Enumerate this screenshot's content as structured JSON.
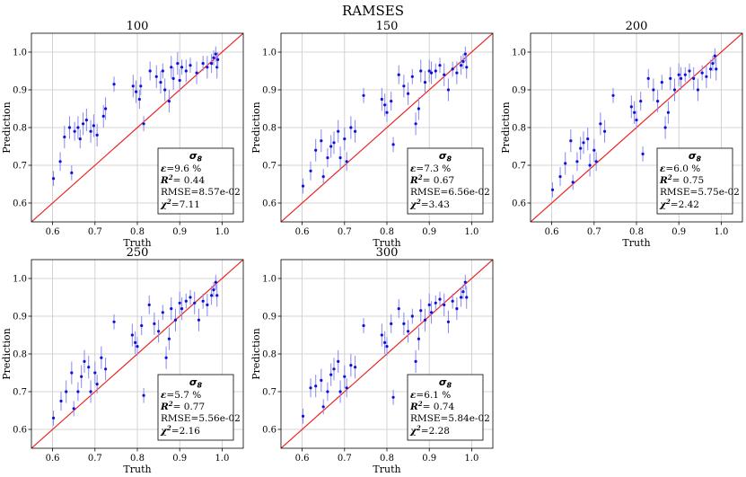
{
  "figure_title": "RAMSES",
  "colors": {
    "points": "#1010dd",
    "errorbars": "#8888f0",
    "identity": "#ee2222",
    "grid": "#c8c8c8"
  },
  "chart_data": [
    {
      "type": "scatter",
      "title": "100",
      "xlabel": "Truth",
      "ylabel": "Prediction",
      "xlim": [
        0.55,
        1.05
      ],
      "ylim": [
        0.55,
        1.05
      ],
      "xticks": [
        0.6,
        0.7,
        0.8,
        0.9,
        1.0
      ],
      "yticks": [
        0.6,
        0.7,
        0.8,
        0.9,
        1.0
      ],
      "grid": true,
      "identity_line": true,
      "stats": {
        "param": "σ8",
        "eps": "=9.6 %",
        "r2": "0.44",
        "rmse": "RMSE=8.57e-02",
        "chi2": "=7.11"
      },
      "points": [
        [
          0.602,
          0.665,
          0.02
        ],
        [
          0.618,
          0.71,
          0.025
        ],
        [
          0.628,
          0.775,
          0.03
        ],
        [
          0.64,
          0.8,
          0.03
        ],
        [
          0.645,
          0.68,
          0.02
        ],
        [
          0.652,
          0.79,
          0.025
        ],
        [
          0.66,
          0.8,
          0.03
        ],
        [
          0.665,
          0.77,
          0.025
        ],
        [
          0.672,
          0.81,
          0.03
        ],
        [
          0.68,
          0.82,
          0.03
        ],
        [
          0.69,
          0.79,
          0.03
        ],
        [
          0.697,
          0.805,
          0.03
        ],
        [
          0.705,
          0.78,
          0.03
        ],
        [
          0.72,
          0.83,
          0.03
        ],
        [
          0.725,
          0.85,
          0.03
        ],
        [
          0.745,
          0.915,
          0.02
        ],
        [
          0.79,
          0.91,
          0.03
        ],
        [
          0.797,
          0.895,
          0.03
        ],
        [
          0.805,
          0.875,
          0.025
        ],
        [
          0.808,
          0.91,
          0.025
        ],
        [
          0.815,
          0.81,
          0.02
        ],
        [
          0.83,
          0.95,
          0.025
        ],
        [
          0.845,
          0.935,
          0.03
        ],
        [
          0.855,
          0.92,
          0.03
        ],
        [
          0.86,
          0.95,
          0.02
        ],
        [
          0.865,
          0.9,
          0.03
        ],
        [
          0.875,
          0.87,
          0.03
        ],
        [
          0.88,
          0.96,
          0.03
        ],
        [
          0.885,
          0.93,
          0.03
        ],
        [
          0.895,
          0.97,
          0.03
        ],
        [
          0.9,
          0.925,
          0.03
        ],
        [
          0.905,
          0.96,
          0.02
        ],
        [
          0.915,
          0.95,
          0.03
        ],
        [
          0.925,
          0.965,
          0.02
        ],
        [
          0.94,
          0.945,
          0.03
        ],
        [
          0.955,
          0.97,
          0.02
        ],
        [
          0.965,
          0.96,
          0.03
        ],
        [
          0.975,
          0.97,
          0.025
        ],
        [
          0.98,
          0.985,
          0.02
        ],
        [
          0.985,
          0.995,
          0.02
        ],
        [
          0.988,
          0.96,
          0.03
        ],
        [
          0.99,
          0.98,
          0.02
        ]
      ]
    },
    {
      "type": "scatter",
      "title": "150",
      "xlabel": "Truth",
      "ylabel": "Prediction",
      "xlim": [
        0.55,
        1.05
      ],
      "ylim": [
        0.55,
        1.05
      ],
      "xticks": [
        0.6,
        0.7,
        0.8,
        0.9,
        1.0
      ],
      "yticks": [
        0.6,
        0.7,
        0.8,
        0.9,
        1.0
      ],
      "grid": true,
      "identity_line": true,
      "stats": {
        "param": "σ8",
        "eps": "=7.3 %",
        "r2": "0.67",
        "rmse": "RMSE=6.56e-02",
        "chi2": "=3.43"
      },
      "points": [
        [
          0.602,
          0.645,
          0.02
        ],
        [
          0.62,
          0.685,
          0.025
        ],
        [
          0.632,
          0.74,
          0.03
        ],
        [
          0.645,
          0.765,
          0.03
        ],
        [
          0.65,
          0.67,
          0.02
        ],
        [
          0.66,
          0.72,
          0.025
        ],
        [
          0.668,
          0.75,
          0.03
        ],
        [
          0.675,
          0.76,
          0.03
        ],
        [
          0.685,
          0.79,
          0.03
        ],
        [
          0.69,
          0.72,
          0.03
        ],
        [
          0.7,
          0.77,
          0.03
        ],
        [
          0.705,
          0.71,
          0.025
        ],
        [
          0.715,
          0.8,
          0.03
        ],
        [
          0.725,
          0.79,
          0.03
        ],
        [
          0.745,
          0.885,
          0.02
        ],
        [
          0.788,
          0.875,
          0.03
        ],
        [
          0.795,
          0.86,
          0.03
        ],
        [
          0.8,
          0.84,
          0.025
        ],
        [
          0.81,
          0.87,
          0.025
        ],
        [
          0.815,
          0.755,
          0.02
        ],
        [
          0.828,
          0.94,
          0.025
        ],
        [
          0.84,
          0.91,
          0.03
        ],
        [
          0.85,
          0.89,
          0.03
        ],
        [
          0.86,
          0.935,
          0.02
        ],
        [
          0.868,
          0.81,
          0.03
        ],
        [
          0.875,
          0.85,
          0.03
        ],
        [
          0.88,
          0.95,
          0.03
        ],
        [
          0.89,
          0.92,
          0.03
        ],
        [
          0.9,
          0.95,
          0.03
        ],
        [
          0.905,
          0.945,
          0.03
        ],
        [
          0.915,
          0.95,
          0.02
        ],
        [
          0.925,
          0.965,
          0.02
        ],
        [
          0.935,
          0.94,
          0.03
        ],
        [
          0.945,
          0.9,
          0.03
        ],
        [
          0.955,
          0.955,
          0.02
        ],
        [
          0.965,
          0.945,
          0.03
        ],
        [
          0.975,
          0.965,
          0.025
        ],
        [
          0.98,
          0.975,
          0.02
        ],
        [
          0.985,
          0.995,
          0.02
        ],
        [
          0.988,
          0.96,
          0.03
        ]
      ]
    },
    {
      "type": "scatter",
      "title": "200",
      "xlabel": "Truth",
      "ylabel": "Prediction",
      "xlim": [
        0.55,
        1.05
      ],
      "ylim": [
        0.55,
        1.05
      ],
      "xticks": [
        0.6,
        0.7,
        0.8,
        0.9,
        1.0
      ],
      "yticks": [
        0.6,
        0.7,
        0.8,
        0.9,
        1.0
      ],
      "grid": true,
      "identity_line": true,
      "stats": {
        "param": "σ8",
        "eps": "=6.0 %",
        "r2": "0.75",
        "rmse": "RMSE=5.75e-02",
        "chi2": "=2.42"
      },
      "points": [
        [
          0.602,
          0.635,
          0.02
        ],
        [
          0.62,
          0.67,
          0.025
        ],
        [
          0.632,
          0.705,
          0.03
        ],
        [
          0.645,
          0.765,
          0.03
        ],
        [
          0.65,
          0.655,
          0.02
        ],
        [
          0.66,
          0.71,
          0.025
        ],
        [
          0.668,
          0.745,
          0.03
        ],
        [
          0.675,
          0.76,
          0.03
        ],
        [
          0.685,
          0.77,
          0.03
        ],
        [
          0.69,
          0.7,
          0.03
        ],
        [
          0.7,
          0.74,
          0.03
        ],
        [
          0.705,
          0.71,
          0.025
        ],
        [
          0.715,
          0.81,
          0.03
        ],
        [
          0.725,
          0.79,
          0.03
        ],
        [
          0.745,
          0.885,
          0.02
        ],
        [
          0.788,
          0.855,
          0.03
        ],
        [
          0.795,
          0.84,
          0.03
        ],
        [
          0.8,
          0.82,
          0.025
        ],
        [
          0.81,
          0.87,
          0.025
        ],
        [
          0.815,
          0.73,
          0.02
        ],
        [
          0.828,
          0.93,
          0.025
        ],
        [
          0.84,
          0.9,
          0.03
        ],
        [
          0.85,
          0.87,
          0.03
        ],
        [
          0.86,
          0.92,
          0.02
        ],
        [
          0.868,
          0.8,
          0.03
        ],
        [
          0.875,
          0.84,
          0.03
        ],
        [
          0.88,
          0.93,
          0.03
        ],
        [
          0.89,
          0.9,
          0.03
        ],
        [
          0.9,
          0.94,
          0.03
        ],
        [
          0.905,
          0.93,
          0.03
        ],
        [
          0.915,
          0.94,
          0.02
        ],
        [
          0.925,
          0.95,
          0.02
        ],
        [
          0.935,
          0.93,
          0.03
        ],
        [
          0.945,
          0.9,
          0.03
        ],
        [
          0.955,
          0.945,
          0.02
        ],
        [
          0.965,
          0.935,
          0.03
        ],
        [
          0.975,
          0.955,
          0.025
        ],
        [
          0.98,
          0.97,
          0.02
        ],
        [
          0.985,
          0.99,
          0.02
        ],
        [
          0.988,
          0.955,
          0.03
        ]
      ]
    },
    {
      "type": "scatter",
      "title": "250",
      "xlabel": "Truth",
      "ylabel": "Prediction",
      "xlim": [
        0.55,
        1.05
      ],
      "ylim": [
        0.55,
        1.05
      ],
      "xticks": [
        0.6,
        0.7,
        0.8,
        0.9,
        1.0
      ],
      "yticks": [
        0.6,
        0.7,
        0.8,
        0.9,
        1.0
      ],
      "grid": true,
      "identity_line": true,
      "stats": {
        "param": "σ8",
        "eps": "=5.7 %",
        "r2": "0.77",
        "rmse": "RMSE=5.56e-02",
        "chi2": "=2.16"
      },
      "points": [
        [
          0.602,
          0.63,
          0.02
        ],
        [
          0.62,
          0.675,
          0.025
        ],
        [
          0.632,
          0.7,
          0.03
        ],
        [
          0.645,
          0.75,
          0.03
        ],
        [
          0.65,
          0.655,
          0.02
        ],
        [
          0.66,
          0.7,
          0.025
        ],
        [
          0.668,
          0.74,
          0.03
        ],
        [
          0.675,
          0.78,
          0.03
        ],
        [
          0.685,
          0.765,
          0.03
        ],
        [
          0.69,
          0.7,
          0.03
        ],
        [
          0.7,
          0.75,
          0.03
        ],
        [
          0.705,
          0.72,
          0.025
        ],
        [
          0.715,
          0.79,
          0.03
        ],
        [
          0.725,
          0.76,
          0.03
        ],
        [
          0.745,
          0.885,
          0.02
        ],
        [
          0.788,
          0.85,
          0.03
        ],
        [
          0.795,
          0.83,
          0.03
        ],
        [
          0.8,
          0.82,
          0.025
        ],
        [
          0.81,
          0.875,
          0.025
        ],
        [
          0.815,
          0.69,
          0.02
        ],
        [
          0.828,
          0.93,
          0.025
        ],
        [
          0.84,
          0.88,
          0.03
        ],
        [
          0.85,
          0.86,
          0.03
        ],
        [
          0.86,
          0.91,
          0.02
        ],
        [
          0.868,
          0.79,
          0.03
        ],
        [
          0.875,
          0.84,
          0.03
        ],
        [
          0.88,
          0.92,
          0.03
        ],
        [
          0.89,
          0.89,
          0.03
        ],
        [
          0.9,
          0.935,
          0.03
        ],
        [
          0.905,
          0.92,
          0.03
        ],
        [
          0.915,
          0.94,
          0.02
        ],
        [
          0.925,
          0.95,
          0.02
        ],
        [
          0.935,
          0.935,
          0.03
        ],
        [
          0.945,
          0.89,
          0.03
        ],
        [
          0.955,
          0.94,
          0.02
        ],
        [
          0.965,
          0.93,
          0.03
        ],
        [
          0.975,
          0.955,
          0.025
        ],
        [
          0.98,
          0.97,
          0.02
        ],
        [
          0.985,
          0.99,
          0.02
        ],
        [
          0.988,
          0.955,
          0.03
        ]
      ]
    },
    {
      "type": "scatter",
      "title": "300",
      "xlabel": "Truth",
      "ylabel": "Prediction",
      "xlim": [
        0.55,
        1.05
      ],
      "ylim": [
        0.55,
        1.05
      ],
      "xticks": [
        0.6,
        0.7,
        0.8,
        0.9,
        1.0
      ],
      "yticks": [
        0.6,
        0.7,
        0.8,
        0.9,
        1.0
      ],
      "grid": true,
      "identity_line": true,
      "stats": {
        "param": "σ8",
        "eps": "=6.1 %",
        "r2": "0.74",
        "rmse": "RMSE=5.84e-02",
        "chi2": "=2.28"
      },
      "points": [
        [
          0.602,
          0.635,
          0.02
        ],
        [
          0.62,
          0.71,
          0.025
        ],
        [
          0.632,
          0.715,
          0.03
        ],
        [
          0.645,
          0.73,
          0.03
        ],
        [
          0.65,
          0.66,
          0.02
        ],
        [
          0.66,
          0.7,
          0.025
        ],
        [
          0.668,
          0.745,
          0.03
        ],
        [
          0.675,
          0.76,
          0.03
        ],
        [
          0.685,
          0.78,
          0.03
        ],
        [
          0.69,
          0.7,
          0.03
        ],
        [
          0.7,
          0.74,
          0.03
        ],
        [
          0.705,
          0.71,
          0.025
        ],
        [
          0.715,
          0.77,
          0.03
        ],
        [
          0.725,
          0.765,
          0.03
        ],
        [
          0.745,
          0.875,
          0.02
        ],
        [
          0.788,
          0.85,
          0.03
        ],
        [
          0.795,
          0.83,
          0.03
        ],
        [
          0.8,
          0.82,
          0.025
        ],
        [
          0.81,
          0.88,
          0.025
        ],
        [
          0.815,
          0.685,
          0.02
        ],
        [
          0.828,
          0.92,
          0.025
        ],
        [
          0.84,
          0.88,
          0.03
        ],
        [
          0.85,
          0.86,
          0.03
        ],
        [
          0.86,
          0.9,
          0.02
        ],
        [
          0.868,
          0.78,
          0.03
        ],
        [
          0.875,
          0.84,
          0.03
        ],
        [
          0.88,
          0.915,
          0.03
        ],
        [
          0.89,
          0.89,
          0.03
        ],
        [
          0.9,
          0.93,
          0.03
        ],
        [
          0.905,
          0.91,
          0.03
        ],
        [
          0.915,
          0.935,
          0.02
        ],
        [
          0.925,
          0.945,
          0.02
        ],
        [
          0.935,
          0.93,
          0.03
        ],
        [
          0.945,
          0.885,
          0.03
        ],
        [
          0.955,
          0.94,
          0.02
        ],
        [
          0.965,
          0.92,
          0.03
        ],
        [
          0.975,
          0.95,
          0.025
        ],
        [
          0.98,
          0.965,
          0.02
        ],
        [
          0.985,
          0.99,
          0.02
        ],
        [
          0.988,
          0.95,
          0.03
        ]
      ]
    }
  ]
}
